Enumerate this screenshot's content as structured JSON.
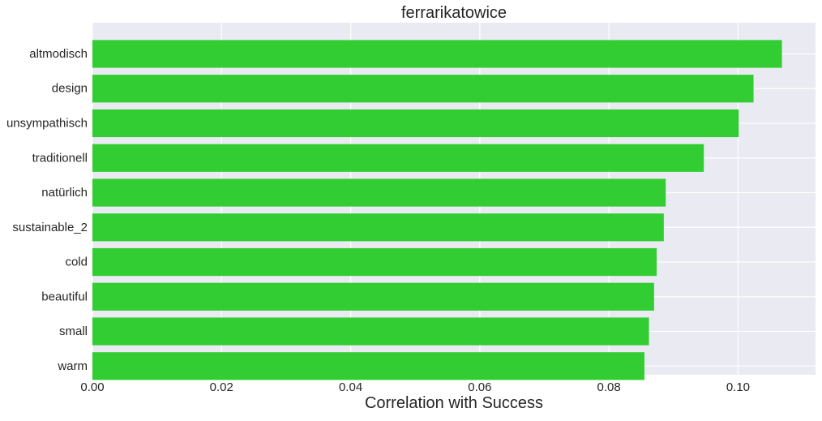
{
  "chart_data": {
    "type": "bar",
    "orientation": "horizontal",
    "title": "ferrarikatowice",
    "xlabel": "Correlation with Success",
    "ylabel": "",
    "categories": [
      "altmodisch",
      "design",
      "unsympathisch",
      "traditionell",
      "natürlich",
      "sustainable_2",
      "cold",
      "beautiful",
      "small",
      "warm"
    ],
    "values": [
      0.1068,
      0.1024,
      0.1001,
      0.0947,
      0.0888,
      0.0885,
      0.0874,
      0.087,
      0.0862,
      0.0855
    ],
    "xlim": [
      0.0,
      0.112
    ],
    "xticks": [
      0.0,
      0.02,
      0.04,
      0.06,
      0.08,
      0.1
    ],
    "xtick_labels": [
      "0.00",
      "0.02",
      "0.04",
      "0.06",
      "0.08",
      "0.10"
    ],
    "grid": true,
    "bar_color": "#32cd32",
    "background_color": "#eaeaf2",
    "grid_color": "#ffffff"
  }
}
